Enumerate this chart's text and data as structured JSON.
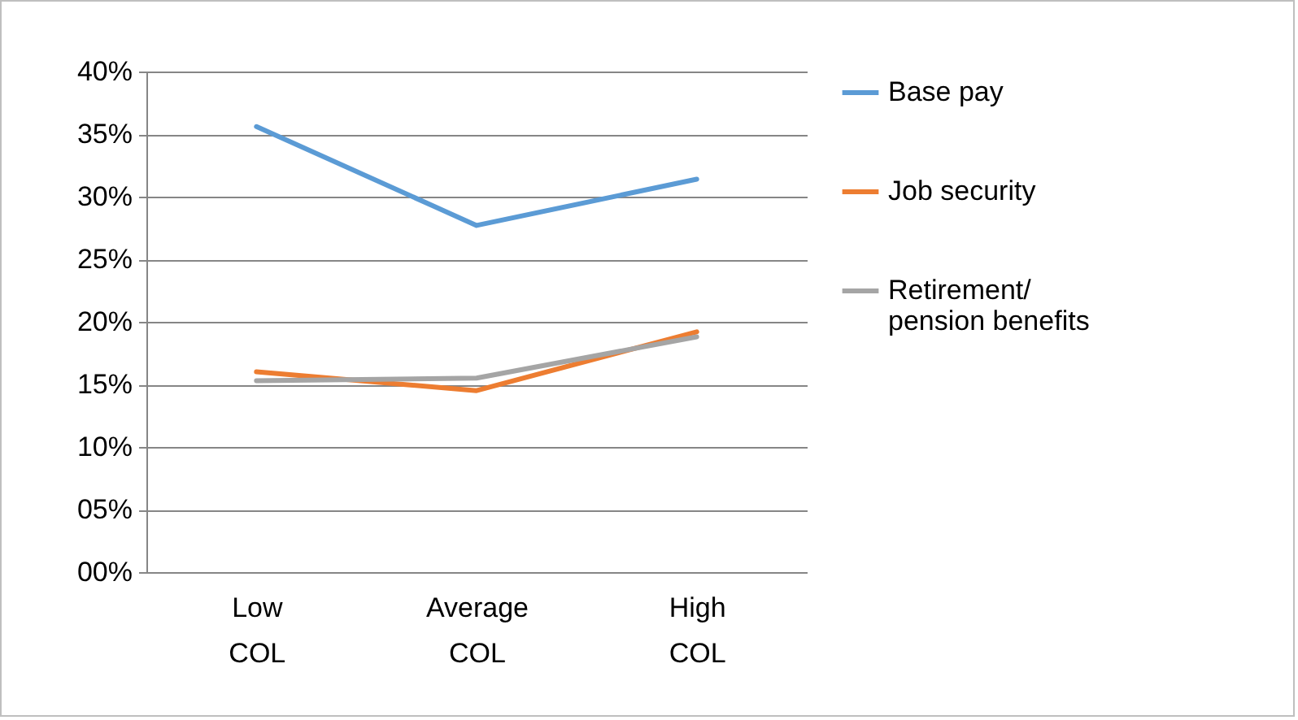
{
  "chart_data": {
    "type": "line",
    "categories": [
      "Low COL",
      "Average COL",
      "High COL"
    ],
    "series": [
      {
        "name": "Base pay",
        "color": "#5b9bd5",
        "values": [
          35.6,
          27.7,
          31.4
        ]
      },
      {
        "name": "Job security",
        "color": "#ed7d31",
        "values": [
          16.0,
          14.5,
          19.2
        ]
      },
      {
        "name": "Retirement/ pension benefits",
        "color": "#a5a5a5",
        "values": [
          15.3,
          15.5,
          18.8
        ]
      }
    ],
    "ylim": [
      0,
      40
    ],
    "yticks": [
      {
        "value": 0,
        "label": "00%"
      },
      {
        "value": 5,
        "label": "05%"
      },
      {
        "value": 10,
        "label": "10%"
      },
      {
        "value": 15,
        "label": "15%"
      },
      {
        "value": 20,
        "label": "20%"
      },
      {
        "value": 25,
        "label": "25%"
      },
      {
        "value": 30,
        "label": "30%"
      },
      {
        "value": 35,
        "label": "35%"
      },
      {
        "value": 40,
        "label": "40%"
      }
    ],
    "grid": "y",
    "legend": "right",
    "marker": "none",
    "line_style": "solid"
  }
}
